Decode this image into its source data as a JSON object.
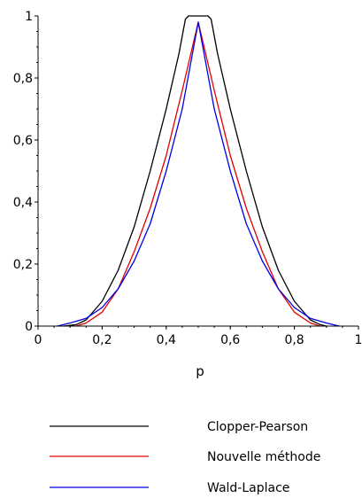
{
  "chart_data": {
    "type": "line",
    "title": "",
    "xlabel": "p",
    "ylabel": "",
    "xlim": [
      0,
      1
    ],
    "ylim": [
      0,
      1
    ],
    "grid": false,
    "legend_position": "bottom",
    "x_ticks": [
      {
        "value": 0,
        "label": "0"
      },
      {
        "value": 0.2,
        "label": "0,2"
      },
      {
        "value": 0.4,
        "label": "0,4"
      },
      {
        "value": 0.6,
        "label": "0,6"
      },
      {
        "value": 0.8,
        "label": "0,8"
      },
      {
        "value": 1,
        "label": "1"
      }
    ],
    "y_ticks": [
      {
        "value": 0,
        "label": "0"
      },
      {
        "value": 0.2,
        "label": "0,2"
      },
      {
        "value": 0.4,
        "label": "0,4"
      },
      {
        "value": 0.6,
        "label": "0,6"
      },
      {
        "value": 0.8,
        "label": "0,8"
      },
      {
        "value": 1,
        "label": "1"
      }
    ],
    "series": [
      {
        "name": "Clopper-Pearson",
        "color": "#000000",
        "points": [
          [
            0.08,
            0.0
          ],
          [
            0.12,
            0.005
          ],
          [
            0.15,
            0.02
          ],
          [
            0.2,
            0.08
          ],
          [
            0.25,
            0.18
          ],
          [
            0.3,
            0.32
          ],
          [
            0.35,
            0.5
          ],
          [
            0.4,
            0.7
          ],
          [
            0.44,
            0.88
          ],
          [
            0.46,
            0.99
          ],
          [
            0.47,
            1.0
          ],
          [
            0.53,
            1.0
          ],
          [
            0.54,
            0.99
          ],
          [
            0.56,
            0.88
          ],
          [
            0.6,
            0.7
          ],
          [
            0.65,
            0.5
          ],
          [
            0.7,
            0.32
          ],
          [
            0.75,
            0.18
          ],
          [
            0.8,
            0.08
          ],
          [
            0.85,
            0.02
          ],
          [
            0.88,
            0.005
          ],
          [
            0.9,
            0.0
          ]
        ]
      },
      {
        "name": "Nouvelle méthode",
        "color": "#e00000",
        "points": [
          [
            0.12,
            0.0
          ],
          [
            0.15,
            0.01
          ],
          [
            0.2,
            0.045
          ],
          [
            0.25,
            0.12
          ],
          [
            0.3,
            0.24
          ],
          [
            0.35,
            0.38
          ],
          [
            0.4,
            0.55
          ],
          [
            0.45,
            0.76
          ],
          [
            0.5,
            0.98
          ],
          [
            0.55,
            0.76
          ],
          [
            0.6,
            0.55
          ],
          [
            0.65,
            0.38
          ],
          [
            0.7,
            0.24
          ],
          [
            0.75,
            0.12
          ],
          [
            0.8,
            0.045
          ],
          [
            0.85,
            0.01
          ],
          [
            0.88,
            0.0
          ]
        ]
      },
      {
        "name": "Wald-Laplace",
        "color": "#0000e6",
        "points": [
          [
            0.06,
            0.0
          ],
          [
            0.1,
            0.01
          ],
          [
            0.15,
            0.025
          ],
          [
            0.2,
            0.06
          ],
          [
            0.25,
            0.12
          ],
          [
            0.3,
            0.21
          ],
          [
            0.35,
            0.33
          ],
          [
            0.4,
            0.5
          ],
          [
            0.45,
            0.7
          ],
          [
            0.5,
            0.98
          ],
          [
            0.55,
            0.7
          ],
          [
            0.6,
            0.5
          ],
          [
            0.65,
            0.33
          ],
          [
            0.7,
            0.21
          ],
          [
            0.75,
            0.12
          ],
          [
            0.8,
            0.06
          ],
          [
            0.85,
            0.025
          ],
          [
            0.9,
            0.01
          ],
          [
            0.94,
            0.0
          ]
        ]
      }
    ]
  }
}
